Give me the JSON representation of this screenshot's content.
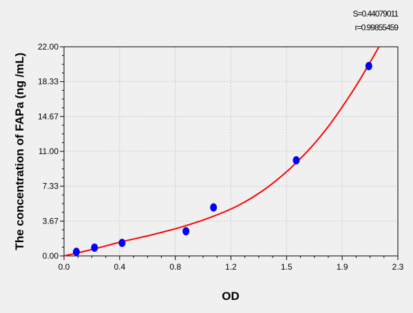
{
  "chart_data": {
    "type": "scatter",
    "title": "",
    "xlabel": "OD",
    "ylabel": "The concentration of FAPa (ng /mL)",
    "xlim": [
      0,
      2.3
    ],
    "ylim": [
      0,
      22
    ],
    "x_ticks": [
      "0.0",
      "0.4",
      "0.8",
      "1.2",
      "1.5",
      "1.9",
      "2.3"
    ],
    "y_ticks": [
      "0.00",
      "3.67",
      "7.33",
      "11.00",
      "14.67",
      "18.33",
      "22.00"
    ],
    "grid": true,
    "annotations": [
      "S=0.44079011",
      "r=0.99855459"
    ],
    "points": {
      "x": [
        0.085,
        0.21,
        0.4,
        0.84,
        1.03,
        1.6,
        2.1
      ],
      "y": [
        0.43,
        0.87,
        1.37,
        2.6,
        5.1,
        10.06,
        19.97
      ]
    },
    "fit_curve": {
      "x": [
        0,
        0.2,
        0.4,
        0.6,
        0.8,
        1.0,
        1.2,
        1.4,
        1.6,
        1.8,
        2.0,
        2.17
      ],
      "y": [
        0,
        0.7,
        1.5,
        2.2,
        3.0,
        4.0,
        5.3,
        7.2,
        9.8,
        13.2,
        17.6,
        22
      ]
    },
    "colors": {
      "points": "#0000ff",
      "curve": "#ff0000",
      "grid": "#c8c8c8"
    }
  }
}
